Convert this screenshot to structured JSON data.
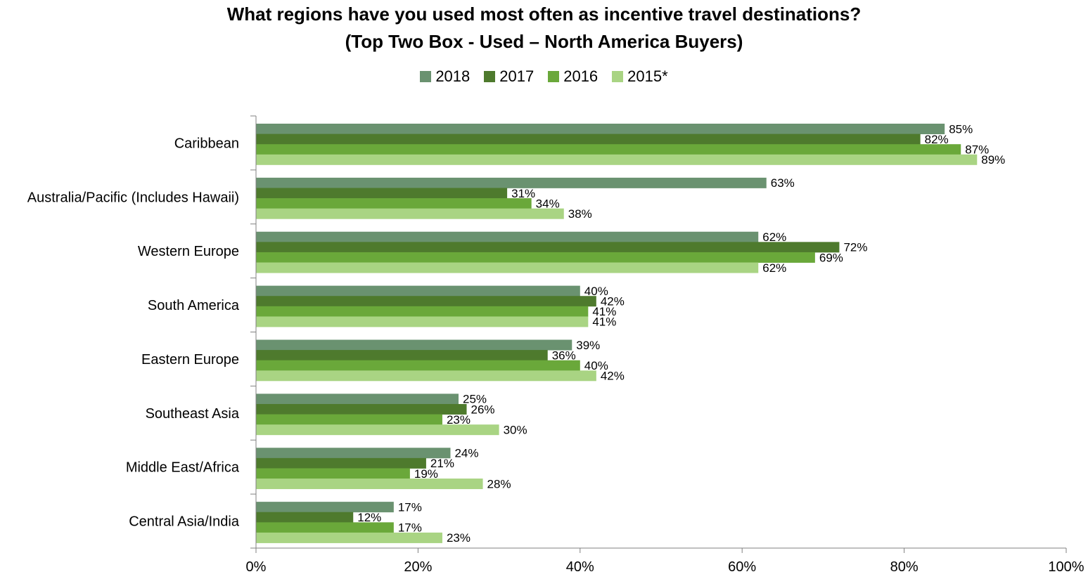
{
  "chart_data": {
    "type": "bar",
    "orientation": "horizontal",
    "title": "What regions have you used most often as incentive travel destinations?",
    "subtitle": "(Top Two Box - Used – North America Buyers)",
    "categories": [
      "Caribbean",
      "Australia/Pacific (Includes Hawaii)",
      "Western Europe",
      "South America",
      "Eastern Europe",
      "Southeast Asia",
      "Middle East/Africa",
      "Central Asia/India"
    ],
    "series": [
      {
        "name": "2018",
        "color": "#6a9270",
        "values": [
          85,
          63,
          62,
          40,
          39,
          25,
          24,
          17
        ]
      },
      {
        "name": "2017",
        "color": "#4e7a2d",
        "values": [
          82,
          31,
          72,
          42,
          36,
          26,
          21,
          12
        ]
      },
      {
        "name": "2016",
        "color": "#6aa83a",
        "values": [
          87,
          34,
          69,
          41,
          40,
          23,
          19,
          17
        ]
      },
      {
        "name": "2015*",
        "color": "#a9d483",
        "values": [
          89,
          38,
          62,
          41,
          42,
          30,
          28,
          23
        ]
      }
    ],
    "xlim": [
      0,
      100
    ],
    "x_ticks": [
      "0%",
      "20%",
      "40%",
      "60%",
      "80%",
      "100%"
    ],
    "value_suffix": "%",
    "legend_position": "top",
    "grid": false
  }
}
